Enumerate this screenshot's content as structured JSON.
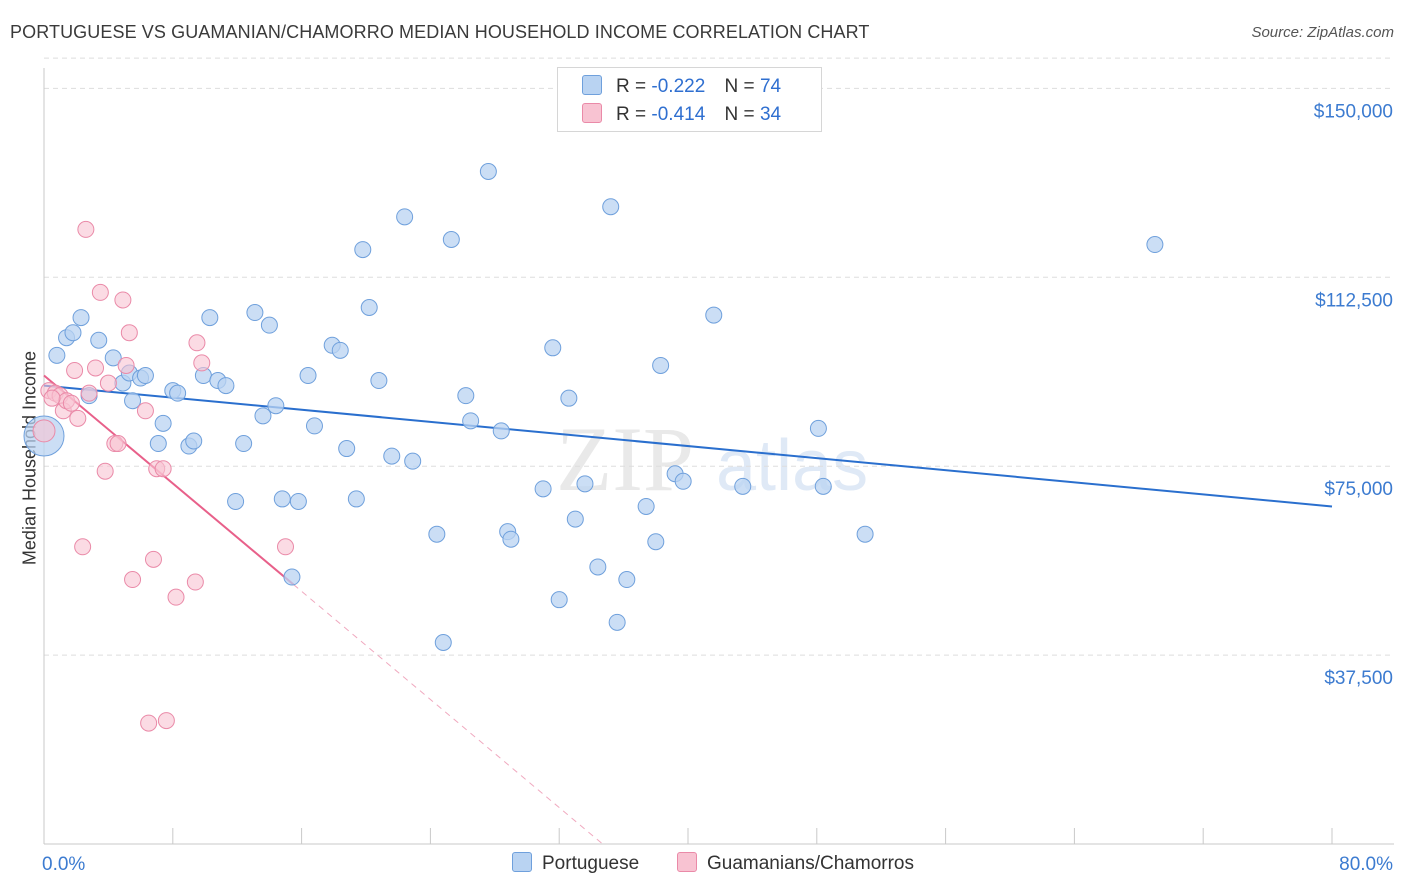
{
  "title": "PORTUGUESE VS GUAMANIAN/CHAMORRO MEDIAN HOUSEHOLD INCOME CORRELATION CHART",
  "source": "Source: ZipAtlas.com",
  "watermark_zip": "ZIP",
  "watermark_atlas": "atlas",
  "legend": {
    "r_label": "R =",
    "n_label": "N =",
    "rows": [
      {
        "r": "-0.222",
        "n": "74"
      },
      {
        "r": "-0.414",
        "n": "34"
      }
    ]
  },
  "colors": {
    "blue_fill": "#b9d3f2",
    "blue_stroke": "#6fa0dc",
    "blue_line": "#2a6fce",
    "pink_fill": "#f8c3d2",
    "pink_stroke": "#ea8aa8",
    "pink_line": "#e8608a",
    "axis_text": "#3c7bd0",
    "grid": "#dddddd"
  },
  "chart_data": {
    "type": "scatter",
    "title": "PORTUGUESE VS GUAMANIAN/CHAMORRO MEDIAN HOUSEHOLD INCOME CORRELATION CHART",
    "xlabel": "",
    "ylabel": "Median Household Income",
    "xlim": [
      0,
      80
    ],
    "ylim": [
      0,
      160000
    ],
    "x_tick_labels": [
      "0.0%",
      "80.0%"
    ],
    "y_ticks": [
      37500,
      75000,
      112500,
      150000
    ],
    "y_tick_labels": [
      "$37,500",
      "$75,000",
      "$112,500",
      "$150,000"
    ],
    "grid": true,
    "legend_position": "top-center",
    "series": [
      {
        "name": "Portuguese",
        "color": "#6fa0dc",
        "trend": {
          "x0": 0,
          "y0": 91000,
          "x1": 80,
          "y1": 67000
        },
        "points": [
          [
            0.0,
            81000
          ],
          [
            0.8,
            97000
          ],
          [
            1.4,
            100500
          ],
          [
            1.8,
            101500
          ],
          [
            2.3,
            104500
          ],
          [
            2.8,
            89000
          ],
          [
            3.4,
            100000
          ],
          [
            4.3,
            96500
          ],
          [
            4.9,
            91500
          ],
          [
            5.3,
            93500
          ],
          [
            5.5,
            88000
          ],
          [
            6.0,
            92500
          ],
          [
            6.3,
            93000
          ],
          [
            7.1,
            79500
          ],
          [
            7.4,
            83500
          ],
          [
            8.0,
            90000
          ],
          [
            8.3,
            89500
          ],
          [
            9.0,
            79000
          ],
          [
            9.3,
            80000
          ],
          [
            9.9,
            93000
          ],
          [
            10.3,
            104500
          ],
          [
            10.8,
            92000
          ],
          [
            11.3,
            91000
          ],
          [
            11.9,
            68000
          ],
          [
            12.4,
            79500
          ],
          [
            13.1,
            105500
          ],
          [
            13.6,
            85000
          ],
          [
            14.0,
            103000
          ],
          [
            14.4,
            87000
          ],
          [
            14.8,
            68500
          ],
          [
            15.4,
            53000
          ],
          [
            15.8,
            68000
          ],
          [
            16.4,
            93000
          ],
          [
            16.8,
            83000
          ],
          [
            17.9,
            99000
          ],
          [
            18.4,
            98000
          ],
          [
            18.8,
            78500
          ],
          [
            19.4,
            68500
          ],
          [
            19.8,
            118000
          ],
          [
            20.2,
            106500
          ],
          [
            20.8,
            92000
          ],
          [
            21.6,
            77000
          ],
          [
            22.4,
            124500
          ],
          [
            22.9,
            76000
          ],
          [
            24.4,
            61500
          ],
          [
            24.8,
            40000
          ],
          [
            25.3,
            120000
          ],
          [
            26.2,
            89000
          ],
          [
            26.5,
            84000
          ],
          [
            27.6,
            133500
          ],
          [
            28.4,
            82000
          ],
          [
            28.8,
            62000
          ],
          [
            29.0,
            60500
          ],
          [
            31.0,
            70500
          ],
          [
            31.6,
            98500
          ],
          [
            32.0,
            48500
          ],
          [
            32.6,
            88500
          ],
          [
            33.0,
            64500
          ],
          [
            33.6,
            71500
          ],
          [
            34.4,
            55000
          ],
          [
            35.2,
            126500
          ],
          [
            35.6,
            44000
          ],
          [
            36.2,
            52500
          ],
          [
            37.4,
            67000
          ],
          [
            38.0,
            60000
          ],
          [
            38.3,
            95000
          ],
          [
            39.2,
            73500
          ],
          [
            39.7,
            72000
          ],
          [
            41.6,
            105000
          ],
          [
            43.4,
            71000
          ],
          [
            48.1,
            82500
          ],
          [
            48.4,
            71000
          ],
          [
            51.0,
            61500
          ],
          [
            69.0,
            119000
          ]
        ]
      },
      {
        "name": "Guamanians/Chamorros",
        "color": "#ea8aa8",
        "trend": {
          "x0": 0,
          "y0": 93000,
          "x1": 15.5,
          "y1": 51500,
          "dash_x1": 36.0,
          "dash_y1": -3500
        },
        "points": [
          [
            0.0,
            82000
          ],
          [
            0.3,
            90000
          ],
          [
            0.7,
            89500
          ],
          [
            1.0,
            89000
          ],
          [
            1.2,
            86000
          ],
          [
            1.4,
            88000
          ],
          [
            1.7,
            87500
          ],
          [
            1.9,
            94000
          ],
          [
            2.1,
            84500
          ],
          [
            2.4,
            59000
          ],
          [
            2.6,
            122000
          ],
          [
            2.8,
            89500
          ],
          [
            3.2,
            94500
          ],
          [
            3.5,
            109500
          ],
          [
            3.8,
            74000
          ],
          [
            4.0,
            91500
          ],
          [
            4.4,
            79500
          ],
          [
            4.6,
            79500
          ],
          [
            4.9,
            108000
          ],
          [
            5.1,
            95000
          ],
          [
            5.3,
            101500
          ],
          [
            5.5,
            52500
          ],
          [
            6.3,
            86000
          ],
          [
            6.5,
            24000
          ],
          [
            6.8,
            56500
          ],
          [
            7.0,
            74500
          ],
          [
            7.4,
            74500
          ],
          [
            7.6,
            24500
          ],
          [
            8.2,
            49000
          ],
          [
            9.4,
            52000
          ],
          [
            9.5,
            99500
          ],
          [
            9.8,
            95500
          ],
          [
            15.0,
            59000
          ],
          [
            0.5,
            88500
          ]
        ]
      }
    ]
  },
  "bottom_legend": [
    "Portuguese",
    "Guamanians/Chamorros"
  ]
}
